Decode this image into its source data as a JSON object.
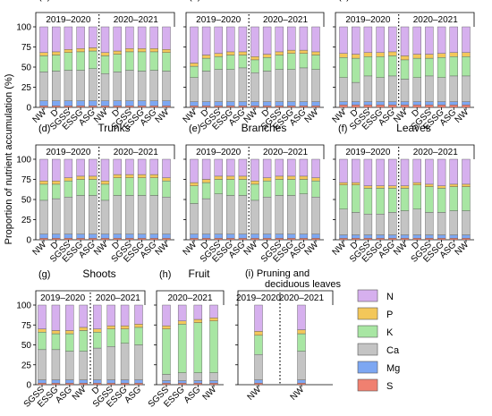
{
  "figure": {
    "ylabel": "Proportion of nutrient accumulation (%)",
    "legend": {
      "placement": "bottom-right",
      "title": ""
    }
  },
  "nutrient_colors": {
    "S": "#f08070",
    "Mg": "#7da7f2",
    "Ca": "#c4c4c4",
    "K": "#a8e6a3",
    "P": "#f3c75a",
    "N": "#d6b0ee"
  },
  "chart_data": [
    {
      "id": "a",
      "letter": "(a)",
      "title": "Whole tree",
      "type": "bar",
      "stacked": true,
      "series_order": [
        "S",
        "Mg",
        "Ca",
        "K",
        "P",
        "N"
      ],
      "period_labels": [
        "2019–2020",
        "2020–2021"
      ],
      "categories": [
        "NW",
        "D",
        "SGSS",
        "ESSG",
        "ASG",
        "NW",
        "D",
        "SGSS",
        "ESSG",
        "ASG",
        "NW"
      ],
      "split_after": 4,
      "ylim": [
        0,
        100
      ],
      "stacks": [
        [
          2,
          6,
          36,
          20,
          4,
          32
        ],
        [
          2,
          6,
          37,
          20,
          4,
          31
        ],
        [
          2,
          6,
          38,
          22,
          4,
          28
        ],
        [
          2,
          6,
          38,
          23,
          4,
          27
        ],
        [
          2,
          6,
          40,
          22,
          4,
          26
        ],
        [
          2,
          6,
          34,
          22,
          4,
          32
        ],
        [
          2,
          6,
          36,
          22,
          4,
          30
        ],
        [
          2,
          6,
          38,
          23,
          4,
          27
        ],
        [
          2,
          6,
          37,
          24,
          4,
          27
        ],
        [
          2,
          6,
          38,
          23,
          4,
          27
        ],
        [
          2,
          6,
          37,
          23,
          4,
          28
        ]
      ]
    },
    {
      "id": "b",
      "letter": "(b)",
      "title": "Coarse roots",
      "type": "bar",
      "stacked": true,
      "series_order": [
        "S",
        "Mg",
        "Ca",
        "K",
        "P",
        "N"
      ],
      "period_labels": [
        "2019–2020",
        "2020–2021"
      ],
      "categories": [
        "NW",
        "D",
        "SGSS",
        "ESSG",
        "ASG",
        "NW",
        "D",
        "SGSS",
        "ESSG",
        "ASG",
        "NW"
      ],
      "split_after": 4,
      "ylim": [
        0,
        100
      ],
      "stacks": [
        [
          2,
          5,
          30,
          14,
          4,
          45
        ],
        [
          2,
          5,
          38,
          16,
          4,
          35
        ],
        [
          2,
          5,
          40,
          16,
          4,
          33
        ],
        [
          2,
          5,
          40,
          18,
          4,
          31
        ],
        [
          2,
          5,
          42,
          16,
          4,
          31
        ],
        [
          2,
          5,
          36,
          16,
          4,
          37
        ],
        [
          2,
          5,
          38,
          17,
          4,
          34
        ],
        [
          2,
          5,
          40,
          18,
          4,
          31
        ],
        [
          2,
          5,
          40,
          20,
          4,
          29
        ],
        [
          2,
          5,
          42,
          18,
          4,
          29
        ],
        [
          2,
          5,
          40,
          18,
          4,
          31
        ]
      ]
    },
    {
      "id": "c",
      "letter": "(c)",
      "title": "Fine roots",
      "type": "bar",
      "stacked": true,
      "series_order": [
        "S",
        "Mg",
        "Ca",
        "K",
        "P",
        "N"
      ],
      "period_labels": [
        "2019–2020",
        "2020–2021"
      ],
      "categories": [
        "NW",
        "D",
        "SGSS",
        "ESSG",
        "ASG",
        "NW",
        "D",
        "SGSS",
        "ESSG",
        "ASG",
        "NW"
      ],
      "split_after": 4,
      "ylim": [
        0,
        100
      ],
      "stacks": [
        [
          3,
          4,
          30,
          25,
          5,
          33
        ],
        [
          3,
          4,
          24,
          30,
          5,
          34
        ],
        [
          3,
          4,
          32,
          24,
          5,
          32
        ],
        [
          3,
          4,
          30,
          26,
          5,
          32
        ],
        [
          3,
          4,
          32,
          25,
          5,
          31
        ],
        [
          3,
          4,
          28,
          24,
          5,
          36
        ],
        [
          3,
          4,
          30,
          24,
          5,
          34
        ],
        [
          3,
          4,
          32,
          22,
          5,
          34
        ],
        [
          3,
          4,
          30,
          25,
          5,
          33
        ],
        [
          3,
          4,
          32,
          24,
          5,
          32
        ],
        [
          3,
          4,
          32,
          24,
          5,
          32
        ]
      ]
    },
    {
      "id": "d",
      "letter": "(d)",
      "title": "Trunks",
      "type": "bar",
      "stacked": true,
      "series_order": [
        "S",
        "Mg",
        "Ca",
        "K",
        "P",
        "N"
      ],
      "period_labels": [
        "2019–2020",
        "2020–2021"
      ],
      "categories": [
        "NW",
        "D",
        "SGSS",
        "ESSG",
        "ASG",
        "NW",
        "D",
        "SGSS",
        "ESSG",
        "ASG",
        "NW"
      ],
      "split_after": 4,
      "ylim": [
        0,
        100
      ],
      "stacks": [
        [
          2,
          5,
          42,
          20,
          4,
          27
        ],
        [
          2,
          5,
          44,
          18,
          4,
          27
        ],
        [
          2,
          5,
          46,
          20,
          4,
          23
        ],
        [
          2,
          5,
          48,
          20,
          4,
          21
        ],
        [
          2,
          5,
          48,
          20,
          4,
          21
        ],
        [
          2,
          5,
          42,
          20,
          4,
          27
        ],
        [
          2,
          5,
          48,
          22,
          4,
          19
        ],
        [
          2,
          5,
          48,
          22,
          4,
          19
        ],
        [
          2,
          5,
          48,
          22,
          4,
          19
        ],
        [
          2,
          5,
          48,
          22,
          4,
          19
        ],
        [
          2,
          5,
          46,
          20,
          4,
          23
        ]
      ]
    },
    {
      "id": "e",
      "letter": "(e)",
      "title": "Branches",
      "type": "bar",
      "stacked": true,
      "series_order": [
        "S",
        "Mg",
        "Ca",
        "K",
        "P",
        "N"
      ],
      "period_labels": [
        "2019–2020",
        "2020–2021"
      ],
      "categories": [
        "NW",
        "D",
        "SGSS",
        "ESSG",
        "ASG",
        "NW",
        "D",
        "SGSS",
        "ESSG",
        "ASG",
        "NW"
      ],
      "split_after": 4,
      "ylim": [
        0,
        100
      ],
      "stacks": [
        [
          2,
          5,
          38,
          22,
          4,
          29
        ],
        [
          2,
          5,
          44,
          20,
          4,
          25
        ],
        [
          2,
          5,
          50,
          18,
          4,
          21
        ],
        [
          2,
          5,
          48,
          20,
          4,
          21
        ],
        [
          2,
          5,
          48,
          20,
          4,
          21
        ],
        [
          2,
          5,
          42,
          20,
          4,
          27
        ],
        [
          2,
          5,
          46,
          20,
          4,
          23
        ],
        [
          2,
          5,
          48,
          20,
          4,
          21
        ],
        [
          2,
          5,
          48,
          20,
          4,
          21
        ],
        [
          2,
          5,
          50,
          18,
          4,
          21
        ],
        [
          2,
          5,
          46,
          20,
          4,
          23
        ]
      ]
    },
    {
      "id": "f",
      "letter": "(f)",
      "title": "Leaves",
      "type": "bar",
      "stacked": true,
      "series_order": [
        "S",
        "Mg",
        "Ca",
        "K",
        "P",
        "N"
      ],
      "period_labels": [
        "2019–2020",
        "2020–2021"
      ],
      "categories": [
        "NW",
        "D",
        "SGSS",
        "ESSG",
        "ASG",
        "NW",
        "D",
        "SGSS",
        "ESSG",
        "ASG",
        "NW"
      ],
      "split_after": 4,
      "ylim": [
        0,
        100
      ],
      "stacks": [
        [
          2,
          4,
          32,
          30,
          3,
          29
        ],
        [
          2,
          4,
          28,
          34,
          3,
          29
        ],
        [
          2,
          4,
          26,
          32,
          3,
          33
        ],
        [
          2,
          4,
          26,
          32,
          3,
          33
        ],
        [
          2,
          4,
          28,
          30,
          3,
          33
        ],
        [
          2,
          4,
          30,
          28,
          3,
          33
        ],
        [
          2,
          4,
          32,
          30,
          3,
          29
        ],
        [
          2,
          4,
          28,
          32,
          3,
          31
        ],
        [
          2,
          4,
          28,
          30,
          3,
          33
        ],
        [
          2,
          4,
          30,
          30,
          3,
          31
        ],
        [
          2,
          4,
          30,
          30,
          3,
          31
        ]
      ]
    },
    {
      "id": "g",
      "letter": "(g)",
      "title": "Shoots",
      "type": "bar",
      "stacked": true,
      "series_order": [
        "S",
        "Mg",
        "Ca",
        "K",
        "P",
        "N"
      ],
      "period_labels": [
        "2019–2020",
        "2020–2021"
      ],
      "categories": [
        "SGSS",
        "ESSG",
        "ASG",
        "NW",
        "D",
        "SGSS",
        "ESSG",
        "ASG"
      ],
      "split_after": 3,
      "ylim": [
        0,
        100
      ],
      "stacks": [
        [
          2,
          4,
          38,
          22,
          4,
          30
        ],
        [
          2,
          4,
          38,
          20,
          4,
          32
        ],
        [
          2,
          4,
          36,
          22,
          4,
          32
        ],
        [
          2,
          4,
          36,
          26,
          4,
          28
        ],
        [
          2,
          4,
          40,
          20,
          4,
          30
        ],
        [
          2,
          4,
          42,
          22,
          4,
          26
        ],
        [
          2,
          4,
          46,
          18,
          4,
          26
        ],
        [
          2,
          4,
          44,
          22,
          4,
          24
        ]
      ]
    },
    {
      "id": "h",
      "letter": "(h)",
      "title": "Fruit",
      "type": "bar",
      "stacked": true,
      "series_order": [
        "S",
        "Mg",
        "Ca",
        "K",
        "P",
        "N"
      ],
      "period_labels": [
        "2020–2021"
      ],
      "categories": [
        "SGSS",
        "ESSG",
        "ASG",
        "NW"
      ],
      "split_after": null,
      "ylim": [
        0,
        100
      ],
      "stacks": [
        [
          2,
          3,
          8,
          57,
          4,
          26
        ],
        [
          2,
          3,
          10,
          61,
          4,
          20
        ],
        [
          2,
          3,
          10,
          63,
          4,
          18
        ],
        [
          2,
          3,
          10,
          65,
          4,
          16
        ]
      ]
    },
    {
      "id": "i",
      "letter": "(i)",
      "title": "Pruning and deciduous leaves",
      "type": "bar",
      "stacked": true,
      "series_order": [
        "S",
        "Mg",
        "Ca",
        "K",
        "P",
        "N"
      ],
      "period_labels": [
        "2019–2020",
        "2020–2021"
      ],
      "categories": [
        "NW",
        "NW"
      ],
      "split_after": 0,
      "ylim": [
        0,
        100
      ],
      "stacks": [
        [
          2,
          4,
          32,
          24,
          5,
          33
        ],
        [
          2,
          4,
          36,
          22,
          5,
          31
        ]
      ]
    }
  ],
  "yticks": [
    "0",
    "25",
    "50",
    "75",
    "100"
  ],
  "legend_items": [
    "N",
    "P",
    "K",
    "Ca",
    "Mg",
    "S"
  ]
}
